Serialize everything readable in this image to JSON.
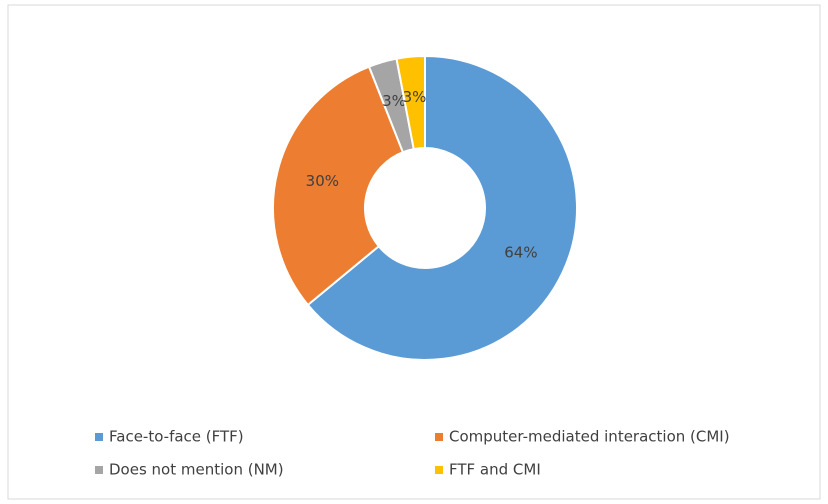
{
  "chart_data": {
    "type": "donut",
    "categories": [
      "Face-to-face (FTF)",
      "Computer-mediated interaction (CMI)",
      "Does not mention (NM)",
      "FTF and CMI"
    ],
    "values": [
      64,
      30,
      3,
      3
    ],
    "value_labels": [
      "64%",
      "30%",
      "3%",
      "3%"
    ],
    "colors": [
      "#5b9bd5",
      "#ed7d31",
      "#a5a5a5",
      "#ffc000"
    ],
    "legend": "bottom"
  }
}
